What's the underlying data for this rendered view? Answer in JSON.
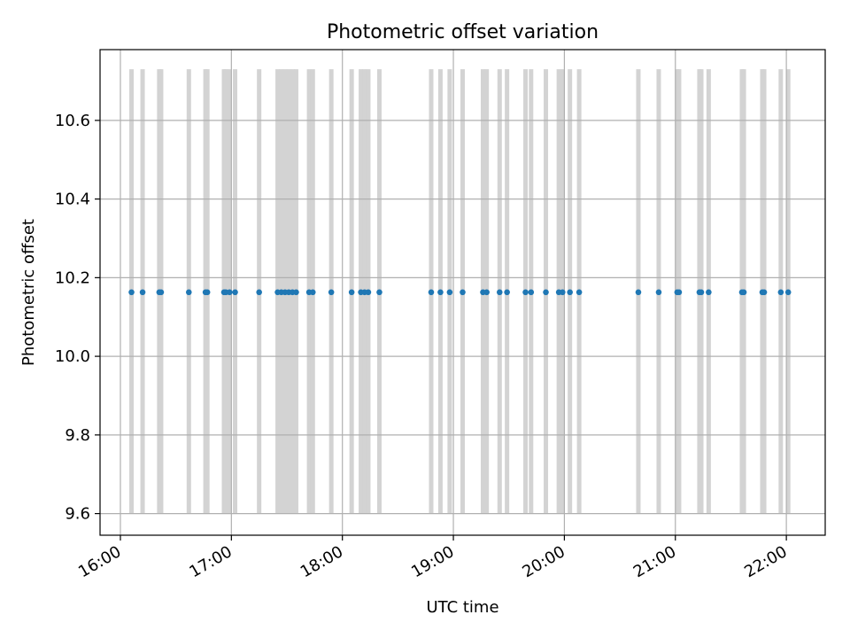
{
  "chart_data": {
    "type": "scatter",
    "title": "Photometric offset variation",
    "xlabel": "UTC time",
    "ylabel": "Photometric offset",
    "xlim": [
      "15:49",
      "22:21"
    ],
    "ylim": [
      9.545,
      10.78
    ],
    "grid": true,
    "x_ticks": [
      "16:00",
      "17:00",
      "18:00",
      "19:00",
      "20:00",
      "21:00",
      "22:00"
    ],
    "y_ticks": [
      "9.6",
      "9.8",
      "10.0",
      "10.2",
      "10.4",
      "10.6"
    ],
    "y_tick_values": [
      9.6,
      9.8,
      10.0,
      10.2,
      10.4,
      10.6
    ],
    "marker_color": "#1f77b4",
    "bar_color": "#d3d3d3",
    "bar_range": [
      9.6,
      10.73
    ],
    "series": [
      {
        "y": 10.163,
        "x": [
          "16:06",
          "16:12",
          "16:21",
          "16:22",
          "16:37",
          "16:46",
          "16:47",
          "16:56",
          "16:57",
          "16:59",
          "17:02",
          "17:15",
          "17:25",
          "17:27",
          "17:29",
          "17:31",
          "17:33",
          "17:35",
          "17:42",
          "17:44",
          "17:54",
          "18:05",
          "18:10",
          "18:12",
          "18:14",
          "18:20",
          "18:48",
          "18:53",
          "18:58",
          "19:05",
          "19:16",
          "19:18",
          "19:25",
          "19:29",
          "19:39",
          "19:42",
          "19:50",
          "19:57",
          "19:59",
          "20:03",
          "20:08",
          "20:40",
          "20:51",
          "21:01",
          "21:02",
          "21:13",
          "21:14",
          "21:18",
          "21:36",
          "21:37",
          "21:47",
          "21:48",
          "21:57",
          "22:01"
        ]
      }
    ]
  }
}
